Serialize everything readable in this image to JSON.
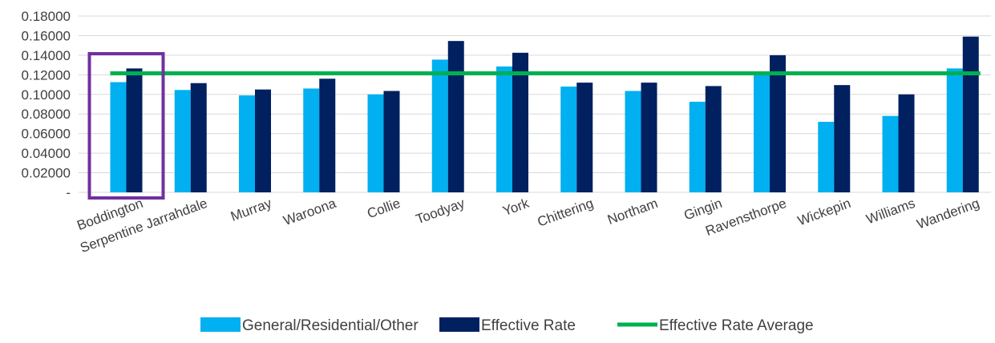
{
  "chart_data": {
    "type": "bar",
    "categories": [
      "Boddington",
      "Serpentine Jarrahdale",
      "Murray",
      "Waroona",
      "Collie",
      "Toodyay",
      "York",
      "Chittering",
      "Northam",
      "Gingin",
      "Ravensthorpe",
      "Wickepin",
      "Williams",
      "Wandering"
    ],
    "series": [
      {
        "name": "General/Residential/Other",
        "kind": "bar",
        "color": "#00B0F0",
        "values": [
          0.1125,
          0.1045,
          0.099,
          0.106,
          0.1,
          0.1355,
          0.1285,
          0.108,
          0.1035,
          0.0925,
          0.121,
          0.072,
          0.078,
          0.1265
        ]
      },
      {
        "name": "Effective Rate",
        "kind": "bar",
        "color": "#002060",
        "values": [
          0.1265,
          0.1115,
          0.105,
          0.116,
          0.1035,
          0.1545,
          0.1425,
          0.112,
          0.112,
          0.1085,
          0.14,
          0.1095,
          0.1,
          0.159
        ]
      },
      {
        "name": "Effective Rate Average",
        "kind": "line",
        "color": "#00B050",
        "value": 0.1215
      }
    ],
    "yticks": [
      "-",
      "0.02000",
      "0.04000",
      "0.06000",
      "0.08000",
      "0.10000",
      "0.12000",
      "0.14000",
      "0.16000",
      "0.18000"
    ],
    "ylim": [
      0,
      0.18
    ],
    "grid": true,
    "legend_position": "bottom",
    "highlight": {
      "category": "Boddington",
      "color": "#7030A0"
    },
    "title": "",
    "xlabel": "",
    "ylabel": ""
  }
}
